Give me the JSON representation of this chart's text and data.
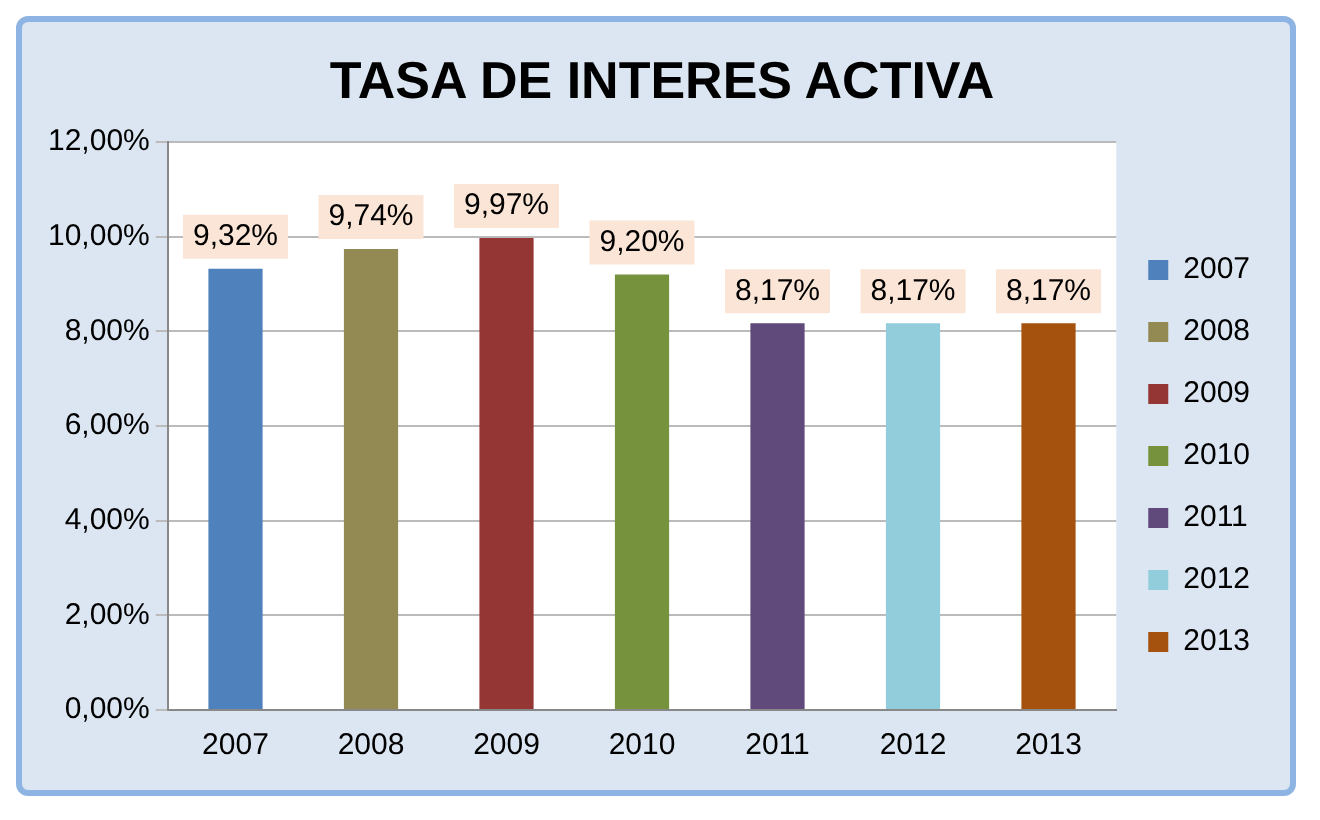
{
  "chart_data": {
    "type": "bar",
    "title": "TASA DE INTERES ACTIVA",
    "categories": [
      "2007",
      "2008",
      "2009",
      "2010",
      "2011",
      "2012",
      "2013"
    ],
    "series": [
      {
        "name": "2007",
        "color": "#4f81bd",
        "values": [
          9.32,
          null,
          null,
          null,
          null,
          null,
          null
        ],
        "value_labels": [
          "9,32%",
          null,
          null,
          null,
          null,
          null,
          null
        ]
      },
      {
        "name": "2008",
        "color": "#938953",
        "values": [
          null,
          9.74,
          null,
          null,
          null,
          null,
          null
        ],
        "value_labels": [
          null,
          "9,74%",
          null,
          null,
          null,
          null,
          null
        ]
      },
      {
        "name": "2009",
        "color": "#943634",
        "values": [
          null,
          null,
          9.97,
          null,
          null,
          null,
          null
        ],
        "value_labels": [
          null,
          null,
          "9,97%",
          null,
          null,
          null,
          null
        ]
      },
      {
        "name": "2010",
        "color": "#76923c",
        "values": [
          null,
          null,
          null,
          9.2,
          null,
          null,
          null
        ],
        "value_labels": [
          null,
          null,
          null,
          "9,20%",
          null,
          null,
          null
        ]
      },
      {
        "name": "2011",
        "color": "#604a7b",
        "values": [
          null,
          null,
          null,
          null,
          8.17,
          null,
          null
        ],
        "value_labels": [
          null,
          null,
          null,
          null,
          "8,17%",
          null,
          null
        ]
      },
      {
        "name": "2012",
        "color": "#92cddc",
        "values": [
          null,
          null,
          null,
          null,
          null,
          8.17,
          null
        ],
        "value_labels": [
          null,
          null,
          null,
          null,
          null,
          "8,17%",
          null
        ]
      },
      {
        "name": "2013",
        "color": "#a5520e",
        "values": [
          null,
          null,
          null,
          null,
          null,
          null,
          8.17
        ],
        "value_labels": [
          null,
          null,
          null,
          null,
          null,
          null,
          "8,17%"
        ]
      }
    ],
    "ylim": [
      0,
      12
    ],
    "yticks": [
      {
        "value": 0,
        "label": "0,00%"
      },
      {
        "value": 2,
        "label": "2,00%"
      },
      {
        "value": 4,
        "label": "4,00%"
      },
      {
        "value": 6,
        "label": "6,00%"
      },
      {
        "value": 8,
        "label": "8,00%"
      },
      {
        "value": 10,
        "label": "10,00%"
      },
      {
        "value": 12,
        "label": "12,00%"
      }
    ],
    "grid": "y",
    "legend": "right"
  }
}
